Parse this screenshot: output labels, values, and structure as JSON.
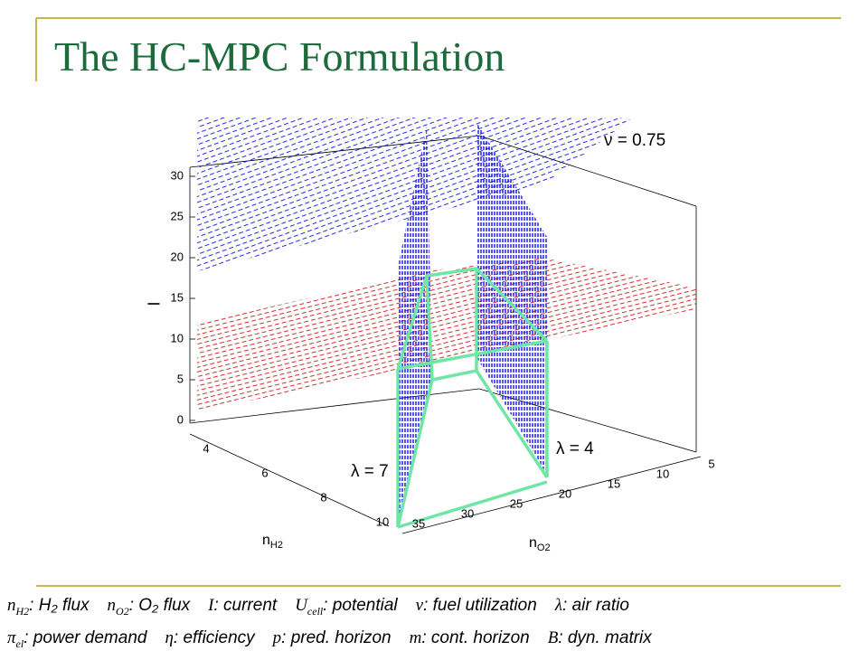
{
  "header": {
    "title": "The HC-MPC Formulation"
  },
  "plot": {
    "z_axis": {
      "label": "I",
      "ticks": [
        "0",
        "5",
        "10",
        "15",
        "20",
        "25",
        "30"
      ]
    },
    "x_axis": {
      "label": "n",
      "label_sub": "H2",
      "ticks": [
        "4",
        "6",
        "8",
        "10"
      ]
    },
    "y_axis": {
      "label": "n",
      "label_sub": "O2",
      "ticks": [
        "35",
        "30",
        "25",
        "20",
        "15",
        "10",
        "5"
      ]
    },
    "annotations": [
      "ν = 0.75",
      "λ = 4",
      "λ = 7"
    ]
  },
  "legend": [
    [
      {
        "symbol": "n",
        "sub": "H2",
        "text": ": H₂ flux"
      },
      {
        "symbol": "n",
        "sub": "O2",
        "text": ": O₂ flux"
      },
      {
        "symbol": "I",
        "sub": "",
        "text": ": current"
      },
      {
        "symbol": "U",
        "sub": "cell",
        "text": ": potential"
      },
      {
        "symbol": "ν",
        "sub": "",
        "text": ": fuel utilization"
      },
      {
        "symbol": "λ",
        "sub": "",
        "text": ": air ratio"
      }
    ],
    [
      {
        "symbol": "π",
        "sub": "el",
        "text": ": power demand"
      },
      {
        "symbol": "η",
        "sub": "",
        "text": ": efficiency"
      },
      {
        "symbol": "p",
        "sub": "",
        "text": ": pred. horizon"
      },
      {
        "symbol": "m",
        "sub": "",
        "text": ": cont. horizon"
      },
      {
        "symbol": "B",
        "sub": "",
        "text": ": dyn. matrix"
      }
    ]
  ]
}
